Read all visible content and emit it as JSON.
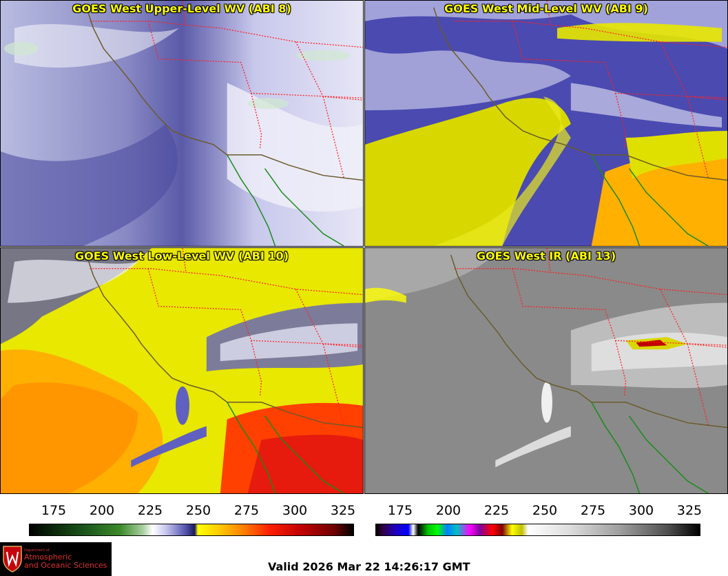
{
  "panels": [
    {
      "title": "GOES West Upper-Level WV (ABI 8)"
    },
    {
      "title": "GOES West Mid-Level WV (ABI 9)"
    },
    {
      "title": "GOES West Low-Level WV (ABI 10)"
    },
    {
      "title": "GOES West IR (ABI 13)"
    }
  ],
  "colorbar_left": {
    "ticks": [
      "175",
      "200",
      "225",
      "250",
      "275",
      "300",
      "325"
    ]
  },
  "colorbar_right": {
    "ticks": [
      "175",
      "200",
      "225",
      "250",
      "275",
      "300",
      "325"
    ]
  },
  "logo": {
    "line1": "Department of",
    "line2": "Atmospheric",
    "line3": "and Oceanic Sciences"
  },
  "valid": "Valid 2026 Mar 22 14:26:17 GMT",
  "colors": {
    "title": "#ffff00",
    "state_borders": "#ff2020",
    "coastline": "#6b5a2a",
    "mexico_coast": "#1a8a1a"
  }
}
